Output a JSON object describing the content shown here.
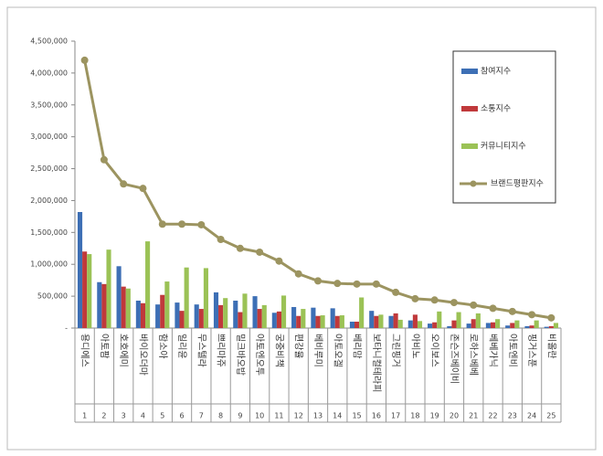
{
  "chart_data": {
    "type": "bar",
    "categories": [
      "용디에스",
      "아토팜",
      "호호에미",
      "바이오더마",
      "함소아",
      "일리윤",
      "무스텔라",
      "쁘리마쥬",
      "밀크바오밥",
      "아토엔오투",
      "궁중비책",
      "편강율",
      "베비루미",
      "아토오겔",
      "베리맘",
      "보타니컬테라피",
      "그린핑거",
      "아비노",
      "오이보스",
      "존슨즈베이비",
      "로하스베베",
      "베베가닉",
      "아토엔비",
      "핑거스푼",
      "비올란"
    ],
    "ranks": [
      1,
      2,
      3,
      4,
      5,
      6,
      7,
      8,
      9,
      10,
      11,
      12,
      13,
      14,
      15,
      16,
      17,
      18,
      19,
      20,
      21,
      22,
      23,
      24,
      25
    ],
    "series": [
      {
        "name": "참여지수",
        "color": "#3d6fb5",
        "values": [
          1820000,
          720000,
          970000,
          430000,
          370000,
          400000,
          370000,
          560000,
          430000,
          500000,
          240000,
          330000,
          320000,
          310000,
          100000,
          270000,
          190000,
          120000,
          70000,
          30000,
          70000,
          80000,
          40000,
          30000,
          20000
        ]
      },
      {
        "name": "소통지수",
        "color": "#c0393b",
        "values": [
          1200000,
          690000,
          650000,
          390000,
          520000,
          270000,
          300000,
          360000,
          250000,
          300000,
          260000,
          190000,
          190000,
          190000,
          100000,
          190000,
          230000,
          210000,
          90000,
          120000,
          140000,
          90000,
          80000,
          40000,
          30000
        ]
      },
      {
        "name": "커뮤니티지수",
        "color": "#9bc256",
        "values": [
          1160000,
          1230000,
          620000,
          1360000,
          730000,
          950000,
          940000,
          470000,
          540000,
          360000,
          510000,
          300000,
          200000,
          200000,
          480000,
          210000,
          130000,
          110000,
          260000,
          250000,
          230000,
          140000,
          120000,
          120000,
          80000
        ]
      },
      {
        "name": "브랜드평판지수",
        "type": "line",
        "color": "#9c9460",
        "values": [
          4200000,
          2640000,
          2260000,
          2190000,
          1630000,
          1630000,
          1620000,
          1390000,
          1250000,
          1190000,
          1050000,
          850000,
          740000,
          700000,
          690000,
          690000,
          560000,
          460000,
          440000,
          400000,
          360000,
          310000,
          260000,
          210000,
          160000
        ]
      }
    ],
    "ylim": [
      0,
      4500000
    ],
    "yticks": [
      {
        "value": 0,
        "label": "-"
      },
      {
        "value": 500000,
        "label": "500,000"
      },
      {
        "value": 1000000,
        "label": "1,000,000"
      },
      {
        "value": 1500000,
        "label": "1,500,000"
      },
      {
        "value": 2000000,
        "label": "2,000,000"
      },
      {
        "value": 2500000,
        "label": "2,500,000"
      },
      {
        "value": 3000000,
        "label": "3,000,000"
      },
      {
        "value": 3500000,
        "label": "3,500,000"
      },
      {
        "value": 4000000,
        "label": "4,000,000"
      },
      {
        "value": 4500000,
        "label": "4,500,000"
      }
    ],
    "grid": false
  }
}
